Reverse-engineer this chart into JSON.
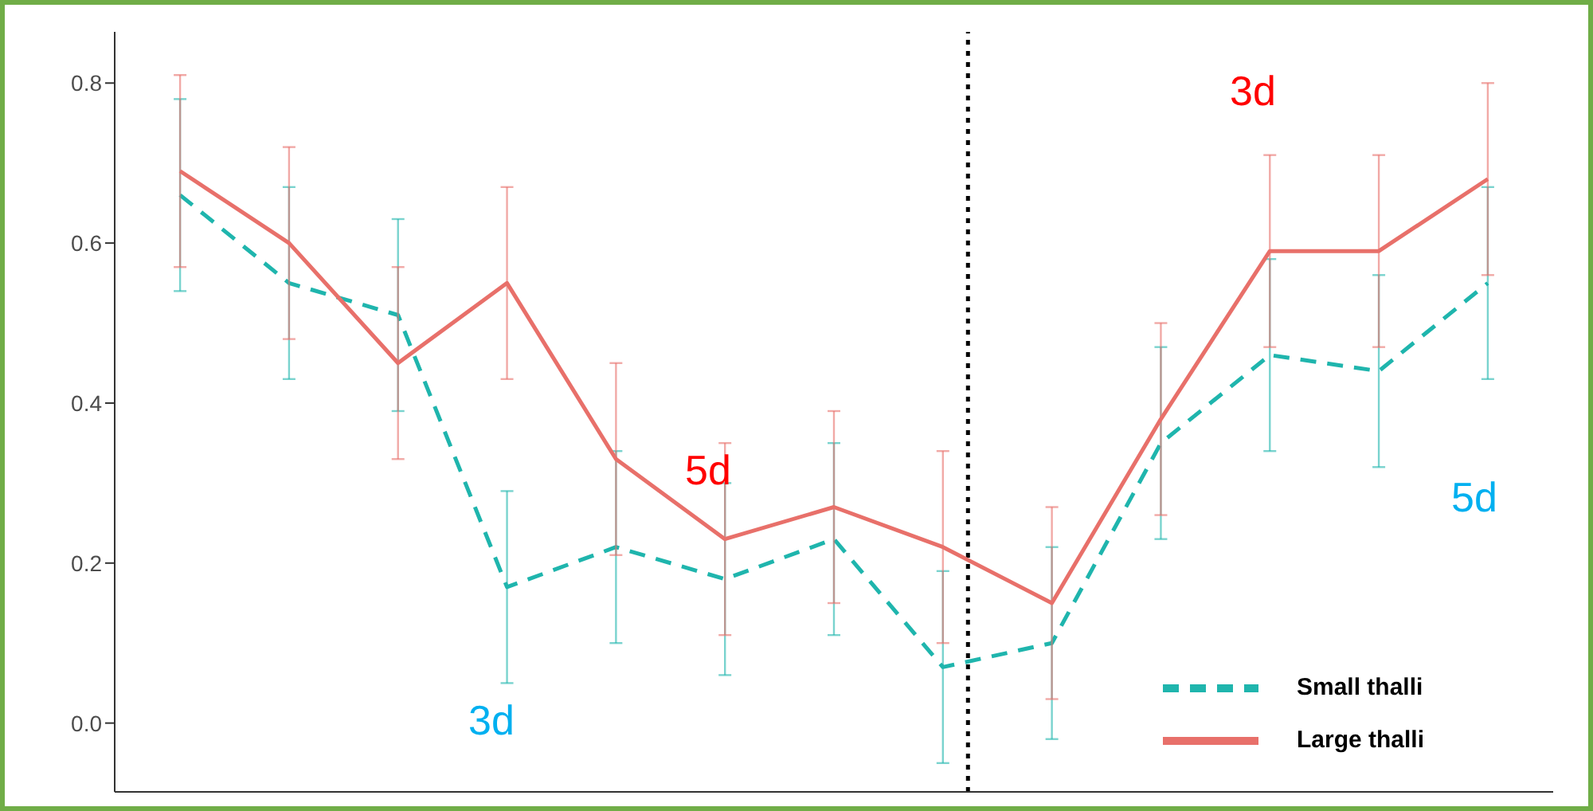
{
  "chart_data": {
    "type": "line",
    "categories": [
      null,
      null,
      null,
      null,
      null,
      null,
      null,
      null,
      null,
      null,
      null,
      null,
      null
    ],
    "tick_labels": "y",
    "ylim": [
      -0.086,
      0.864
    ],
    "yticks": [
      {
        "value": 0,
        "label": "0.0"
      },
      {
        "value": 0.2,
        "label": "0.2"
      },
      {
        "value": 0.4,
        "label": "0.4"
      },
      {
        "value": 0.6,
        "label": "0.6"
      },
      {
        "value": 0.8,
        "label": "0.8"
      }
    ],
    "series": [
      {
        "name": "Small thalli",
        "color": "#1fb5ad",
        "line_style": "dashed",
        "values": [
          0.66,
          0.55,
          0.51,
          0.17,
          0.22,
          0.18,
          0.23,
          0.07,
          0.1,
          0.35,
          0.46,
          0.44,
          0.55
        ],
        "errors": [
          0.12,
          0.12,
          0.12,
          0.12,
          0.12,
          0.12,
          0.12,
          0.12,
          0.12,
          0.12,
          0.12,
          0.12,
          0.12
        ]
      },
      {
        "name": "Large thalli",
        "color": "#e8706a",
        "line_style": "solid",
        "values": [
          0.69,
          0.6,
          0.45,
          0.55,
          0.33,
          0.23,
          0.27,
          0.22,
          0.15,
          0.38,
          0.59,
          0.59,
          0.68
        ],
        "errors": [
          0.12,
          0.12,
          0.12,
          0.12,
          0.12,
          0.12,
          0.12,
          0.12,
          0.12,
          0.12,
          0.12,
          0.12,
          0.12
        ]
      }
    ],
    "annotations": [
      "3d",
      "5d",
      "3d",
      "5d"
    ],
    "legend": "bottom right",
    "grid": false,
    "marker": "none"
  }
}
